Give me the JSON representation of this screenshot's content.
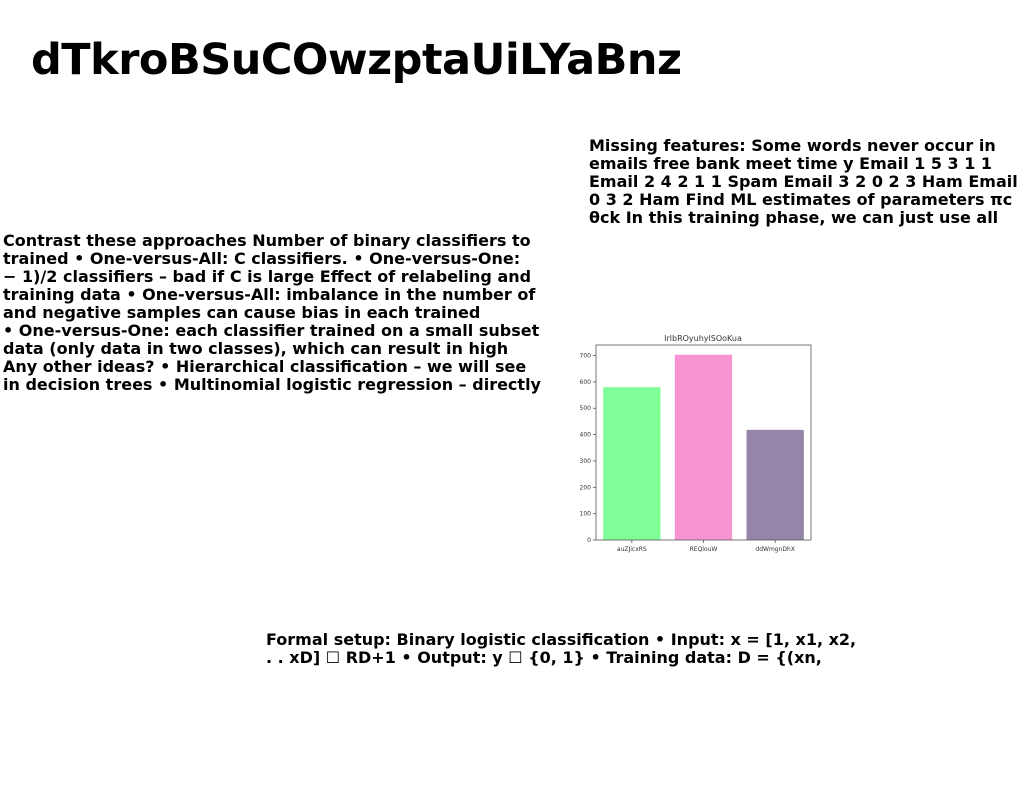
{
  "title": "dTkroBSuCOwzptaUiLYaBnz",
  "text_right": "Missing features: Some words never occur in\nemails free bank meet time y Email 1 5 3 1 1\nEmail 2 4 2 1 1 Spam Email 3 2 0 2 3 Ham Email 4\n0 3 2 Ham Find ML estimates of parameters πc\nθck In this training phase, we can just use all",
  "text_left": "Contrast these approaches Number of binary classifiers to\ntrained • One-versus-All: C classifiers. • One-versus-One:\n− 1)/2 classifiers – bad if C is large Effect of relabeling and\ntraining data • One-versus-All: imbalance in the number of\nand negative samples can cause bias in each trained\n• One-versus-One: each classifier trained on a small subset\ndata (only data in two classes), which can result in high\nAny other ideas? • Hierarchical classification – we will see\nin decision trees • Multinomial logistic regression – directly",
  "text_bottom": "Formal setup: Binary logistic classification • Input: x = [1, x1, x2,\n. . xD] ☐ RD+1 • Output: y ☐ {0, 1} • Training data: D = {(xn,",
  "chart_data": {
    "type": "bar",
    "title": "IrlbROyuhylSOoKua",
    "categories": [
      "auZJicxRS",
      "REQlouW",
      "ddWmgnDhX"
    ],
    "values": [
      580,
      703,
      418
    ],
    "colors": [
      "#80ff98",
      "#f994d2",
      "#9585a9"
    ],
    "ylim": [
      0,
      740
    ],
    "yticks": [
      0,
      100,
      200,
      300,
      400,
      500,
      600,
      700
    ],
    "xlabel": "",
    "ylabel": "",
    "grid": false
  }
}
